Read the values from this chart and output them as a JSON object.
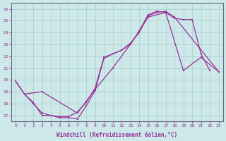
{
  "xlabel": "Windchill (Refroidissement éolien,°C)",
  "background_color": "#cce8e8",
  "grid_color": "#aacccc",
  "line_color": "#993399",
  "xlim": [
    -0.5,
    23.5
  ],
  "ylim": [
    16.5,
    26.5
  ],
  "xticks": [
    0,
    1,
    2,
    3,
    4,
    5,
    6,
    7,
    8,
    9,
    10,
    11,
    12,
    13,
    14,
    15,
    16,
    17,
    18,
    19,
    20,
    21,
    22,
    23
  ],
  "yticks": [
    17,
    18,
    19,
    20,
    21,
    22,
    23,
    24,
    25,
    26
  ],
  "line1_x": [
    0,
    1,
    3,
    7,
    9,
    11,
    13,
    15,
    17,
    19,
    21,
    23
  ],
  "line1_y": [
    19.9,
    18.8,
    19.0,
    17.2,
    19.2,
    21.0,
    23.0,
    25.3,
    25.7,
    20.8,
    21.9,
    20.7
  ],
  "line2_x": [
    0,
    1,
    2,
    3,
    4,
    5,
    6,
    7,
    8,
    9,
    10,
    11,
    12,
    13,
    14,
    15,
    16,
    17,
    18,
    19,
    20,
    21,
    22
  ],
  "line2_y": [
    19.9,
    18.8,
    18.0,
    17.2,
    17.0,
    16.8,
    16.8,
    16.7,
    17.8,
    19.1,
    21.8,
    22.2,
    22.5,
    23.0,
    24.1,
    25.5,
    25.8,
    25.7,
    25.2,
    25.1,
    25.1,
    22.2,
    20.8
  ],
  "line3_x": [
    1,
    2,
    3,
    4,
    5,
    6,
    7,
    8,
    9,
    10,
    11,
    12,
    13,
    14,
    15,
    16,
    17,
    18,
    23
  ],
  "line3_y": [
    18.8,
    18.1,
    17.0,
    17.0,
    16.9,
    16.9,
    17.3,
    18.1,
    19.3,
    21.9,
    22.2,
    22.5,
    23.1,
    24.0,
    25.4,
    25.7,
    25.8,
    25.3,
    20.7
  ]
}
